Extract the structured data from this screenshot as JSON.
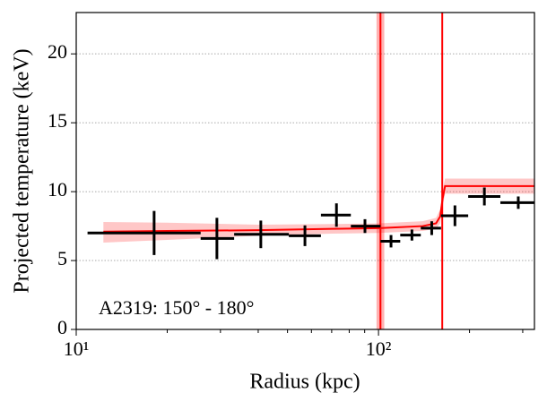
{
  "chart_data": {
    "type": "scatter",
    "xlabel": "Radius (kpc)",
    "ylabel": "Projected temperature (keV)",
    "annotation": "A2319: 150° - 180°",
    "xscale": "log",
    "xlim": [
      10,
      328
    ],
    "ylim": [
      0,
      23
    ],
    "xticks": [
      {
        "value": 10,
        "label": "10¹"
      },
      {
        "value": 100,
        "label": "10²"
      }
    ],
    "xminor": [
      20,
      30,
      40,
      50,
      60,
      70,
      80,
      90,
      200,
      300
    ],
    "yticks": [
      0,
      5,
      10,
      15,
      20
    ],
    "grid": true,
    "color": "#000000",
    "x": [
      18.1,
      29.2,
      40.8,
      57.1,
      72.6,
      90.2,
      110,
      129,
      150,
      179,
      224,
      290
    ],
    "xmin": [
      10.9,
      25.8,
      33.3,
      50.5,
      64.5,
      81.0,
      101.5,
      118,
      138,
      161,
      198,
      253
    ],
    "xmax": [
      25.8,
      33.3,
      50.5,
      64.5,
      81.0,
      101.5,
      118,
      138,
      161,
      198,
      253,
      328
    ],
    "values": [
      7.0,
      6.6,
      6.9,
      6.8,
      8.3,
      7.5,
      6.4,
      6.85,
      7.35,
      8.25,
      9.65,
      9.2
    ],
    "yerr": [
      1.6,
      1.5,
      1.0,
      0.75,
      0.85,
      0.5,
      0.45,
      0.4,
      0.5,
      0.75,
      0.65,
      0.45
    ],
    "model": {
      "color": "#ff0000",
      "x": [
        12.3,
        20,
        40,
        70,
        100,
        140,
        155,
        160,
        163,
        166,
        200,
        328
      ],
      "y": [
        7.1,
        7.15,
        7.2,
        7.3,
        7.35,
        7.5,
        7.7,
        8.2,
        9.5,
        10.4,
        10.4,
        10.4
      ],
      "low": [
        6.3,
        6.5,
        6.8,
        6.95,
        7.0,
        7.15,
        7.3,
        7.7,
        8.9,
        9.85,
        9.85,
        9.85
      ],
      "high": [
        7.8,
        7.75,
        7.6,
        7.65,
        7.7,
        7.85,
        8.1,
        8.7,
        10.1,
        10.95,
        10.95,
        10.95
      ]
    },
    "vlines": [
      {
        "x": 101.5,
        "lo": 98.5,
        "hi": 104.5
      },
      {
        "x": 162.5
      }
    ]
  }
}
